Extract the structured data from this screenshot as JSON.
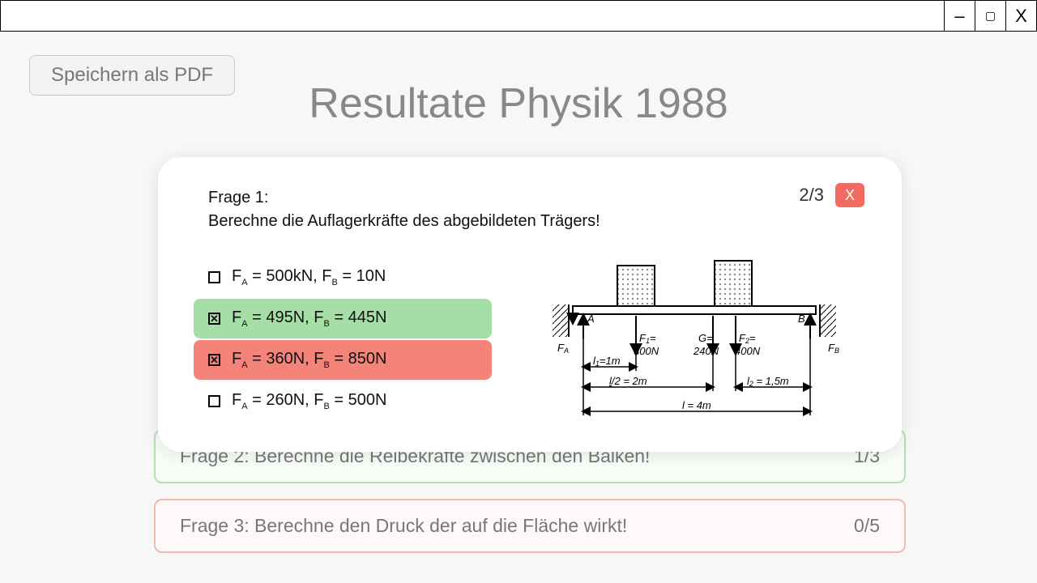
{
  "window": {
    "minimize": "–",
    "maximize": "▢",
    "close": "X"
  },
  "save_button": "Speichern als PDF",
  "title": "Resultate Physik 1988",
  "bg_rows": [
    {
      "label": "Frage 2: Berechne die Reibekräfte zwischen den Balken!",
      "score": "1/3"
    },
    {
      "label": "Frage 3: Berechne den Druck der auf die Fläche wirkt!",
      "score": "0/5"
    }
  ],
  "modal": {
    "counter": "2/3",
    "close": "X",
    "question_num": "Frage 1:",
    "question_text": "Berechne die Auflagerkräfte des abgebildeten Trägers!",
    "answers": [
      {
        "label_pre": "F",
        "subA": "A",
        "mid": " = 500kN, F",
        "subB": "B",
        "post": " = 10N",
        "checked": false,
        "state": ""
      },
      {
        "label_pre": "F",
        "subA": "A",
        "mid": " = 495N, F",
        "subB": "B",
        "post": " = 445N",
        "checked": true,
        "state": "correct"
      },
      {
        "label_pre": "F",
        "subA": "A",
        "mid": " = 360N, F",
        "subB": "B",
        "post": " = 850N",
        "checked": true,
        "state": "wrong"
      },
      {
        "label_pre": "F",
        "subA": "A",
        "mid": " = 260N, F",
        "subB": "B",
        "post": " = 500N",
        "checked": false,
        "state": ""
      }
    ]
  },
  "diagram": {
    "type": "beam-statics",
    "labels": {
      "A": "A",
      "B": "B",
      "FA": "Fₐ",
      "FB": "F_B",
      "F1": "F₁=",
      "F1v": "300N",
      "G": "G=",
      "Gv": "240N",
      "F2": "F₂=",
      "F2v": "400N",
      "l1": "l₁=1m",
      "l2half": "l/2 = 2m",
      "l2": "l₂ = 1,5m",
      "l": "l = 4m"
    },
    "colors": {
      "stroke": "#000000",
      "hatch": "#8a8a8a",
      "text": "#000000"
    }
  }
}
